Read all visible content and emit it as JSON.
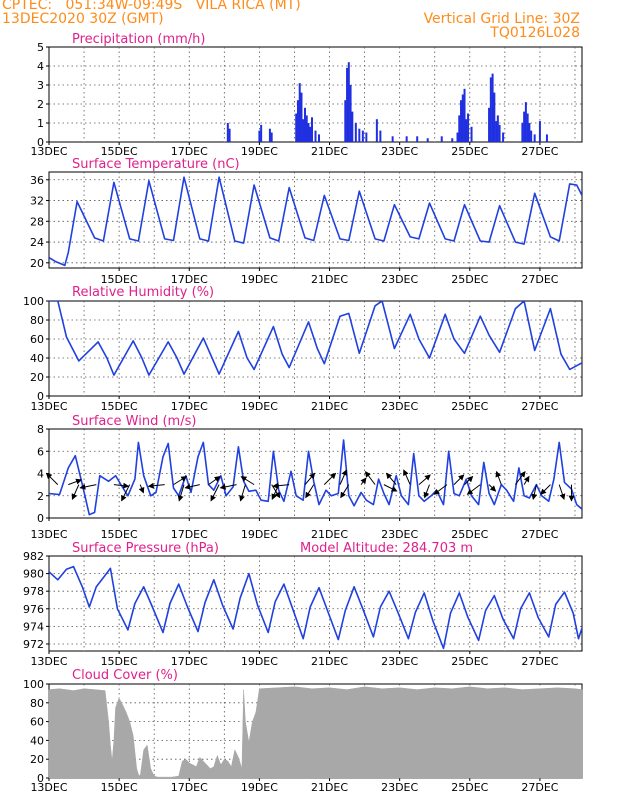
{
  "header": {
    "line1": "CPTEC:   051:34W-09:49S   VILA RICA (MT)",
    "line2": "13DEC2020 30Z (GMT)",
    "grid_note": "Vertical Grid Line: 30Z",
    "model_code": "TQ0126L028"
  },
  "colors": {
    "header": "#ff8c1a",
    "panel_title": "#e0208c",
    "series": "#2040e0",
    "bars": "#2030e0",
    "cloud_fill": "#a8a8a8",
    "wind_arrow": "#000000"
  },
  "chart_data": [
    {
      "type": "bar",
      "title": "Precipitation (mm/h)",
      "ylim": [
        0,
        5
      ],
      "yticks": [
        "0",
        "1",
        "2",
        "3",
        "4",
        "5"
      ],
      "x_tick_labels": [
        "13DEC",
        "15DEC",
        "17DEC",
        "19DEC",
        "21DEC",
        "23DEC",
        "25DEC",
        "27DEC"
      ],
      "x_domain_days": [
        13,
        28.2
      ],
      "series": [
        {
          "x": [
            18.1,
            18.15,
            19.0,
            19.05,
            19.3,
            19.35,
            20.05,
            20.1,
            20.15,
            20.2,
            20.25,
            20.3,
            20.35,
            20.4,
            20.45,
            20.5,
            20.6,
            20.7,
            21.45,
            21.5,
            21.55,
            21.6,
            21.65,
            21.75,
            21.85,
            21.95,
            22.05,
            22.35,
            22.45,
            22.8,
            23.2,
            23.5,
            23.8,
            24.2,
            24.5,
            24.65,
            24.7,
            24.75,
            24.8,
            24.85,
            24.9,
            24.95,
            25.05,
            25.55,
            25.6,
            25.65,
            25.7,
            25.75,
            25.8,
            25.85,
            25.95,
            26.5,
            26.55,
            26.6,
            26.65,
            26.7,
            26.75,
            26.85,
            27.0,
            27.2
          ],
          "values": [
            1.0,
            0.7,
            0.6,
            0.9,
            0.7,
            0.5,
            1.5,
            2.2,
            3.1,
            2.6,
            1.2,
            1.8,
            1.4,
            1.0,
            0.8,
            1.3,
            0.6,
            0.4,
            2.2,
            3.9,
            4.2,
            3.0,
            1.6,
            1.0,
            0.7,
            0.6,
            0.5,
            1.2,
            0.6,
            0.3,
            0.3,
            0.3,
            0.2,
            0.3,
            0.2,
            0.5,
            1.4,
            2.2,
            2.5,
            2.8,
            1.2,
            1.5,
            0.8,
            1.8,
            3.4,
            3.6,
            2.6,
            1.1,
            1.4,
            0.9,
            0.5,
            1.0,
            1.6,
            2.1,
            1.5,
            1.0,
            0.6,
            0.4,
            1.1,
            0.4
          ]
        }
      ]
    },
    {
      "type": "line",
      "title": "Surface Temperature (nC)",
      "ylim": [
        19,
        37.5
      ],
      "yticks": [
        "20",
        "24",
        "28",
        "32",
        "36"
      ],
      "x_tick_labels": [
        "15DEC",
        "17DEC",
        "19DEC",
        "21DEC",
        "23DEC",
        "25DEC",
        "27DEC"
      ],
      "x_domain_days": [
        13,
        28.2
      ],
      "series": [
        {
          "x": [
            13.0,
            13.2,
            13.45,
            13.55,
            13.8,
            14.3,
            14.55,
            14.85,
            15.3,
            15.55,
            15.85,
            16.3,
            16.55,
            16.85,
            17.3,
            17.55,
            17.85,
            18.3,
            18.55,
            18.85,
            19.3,
            19.55,
            19.85,
            20.3,
            20.55,
            20.85,
            21.3,
            21.55,
            21.85,
            22.3,
            22.55,
            22.85,
            23.3,
            23.55,
            23.85,
            24.3,
            24.55,
            24.85,
            25.3,
            25.55,
            25.85,
            26.3,
            26.55,
            26.85,
            27.3,
            27.55,
            27.85,
            28.05,
            28.2
          ],
          "values": [
            21.0,
            20.2,
            19.5,
            22.0,
            31.8,
            24.8,
            24.2,
            35.5,
            24.6,
            24.2,
            35.8,
            24.6,
            24.3,
            36.5,
            24.6,
            24.2,
            36.5,
            24.2,
            23.8,
            35.0,
            24.8,
            24.2,
            34.5,
            24.8,
            24.3,
            33.0,
            24.6,
            24.3,
            33.8,
            24.6,
            24.2,
            31.2,
            25.0,
            24.6,
            31.5,
            24.6,
            24.2,
            31.2,
            24.2,
            24.0,
            31.0,
            24.0,
            23.6,
            33.4,
            25.0,
            24.2,
            35.2,
            35.0,
            33.0
          ]
        }
      ]
    },
    {
      "type": "line",
      "title": "Relative Humidity (%)",
      "ylim": [
        0,
        100
      ],
      "yticks": [
        "0",
        "20",
        "40",
        "60",
        "80",
        "100"
      ],
      "x_tick_labels": [
        "13DEC",
        "15DEC",
        "17DEC",
        "19DEC",
        "21DEC",
        "23DEC",
        "25DEC",
        "27DEC"
      ],
      "x_domain_days": [
        13,
        28.2
      ],
      "series": [
        {
          "x": [
            13.0,
            13.25,
            13.5,
            13.85,
            14.4,
            14.65,
            14.85,
            15.4,
            15.65,
            15.85,
            16.4,
            16.65,
            16.85,
            17.4,
            17.65,
            17.85,
            18.4,
            18.65,
            18.85,
            19.4,
            19.65,
            19.85,
            20.4,
            20.65,
            20.85,
            21.3,
            21.55,
            21.85,
            22.3,
            22.5,
            22.85,
            23.3,
            23.55,
            23.85,
            24.3,
            24.55,
            24.85,
            25.3,
            25.55,
            25.85,
            26.3,
            26.55,
            26.85,
            27.3,
            27.6,
            27.85,
            28.2
          ],
          "values": [
            100,
            100,
            62,
            37,
            57,
            40,
            22,
            58,
            40,
            22,
            57,
            40,
            23,
            61,
            40,
            23,
            68,
            40,
            28,
            73,
            44,
            30,
            78,
            50,
            34,
            84,
            87,
            45,
            95,
            100,
            50,
            86,
            60,
            40,
            86,
            60,
            45,
            84,
            64,
            46,
            92,
            100,
            48,
            92,
            44,
            28,
            35
          ]
        }
      ]
    },
    {
      "type": "line",
      "title": "Surface Wind (m/s)",
      "ylim": [
        0,
        8
      ],
      "yticks": [
        "0",
        "2",
        "4",
        "6",
        "8"
      ],
      "x_tick_labels": [
        "13DEC",
        "15DEC",
        "17DEC",
        "19DEC",
        "21DEC",
        "23DEC",
        "25DEC",
        "27DEC"
      ],
      "x_domain_days": [
        13,
        28.2
      ],
      "series": [
        {
          "x": [
            13.0,
            13.3,
            13.55,
            13.75,
            13.95,
            14.15,
            14.3,
            14.45,
            14.7,
            14.9,
            15.05,
            15.25,
            15.45,
            15.55,
            15.7,
            15.9,
            16.05,
            16.25,
            16.4,
            16.55,
            16.7,
            16.9,
            17.05,
            17.25,
            17.4,
            17.55,
            17.7,
            17.9,
            18.05,
            18.25,
            18.4,
            18.55,
            18.7,
            18.9,
            19.05,
            19.25,
            19.4,
            19.55,
            19.7,
            19.9,
            20.05,
            20.25,
            20.4,
            20.55,
            20.7,
            20.9,
            21.05,
            21.25,
            21.4,
            21.55,
            21.7,
            21.9,
            22.05,
            22.25,
            22.4,
            22.55,
            22.7,
            22.9,
            23.05,
            23.25,
            23.4,
            23.55,
            23.7,
            23.9,
            24.05,
            24.25,
            24.4,
            24.55,
            24.7,
            24.9,
            25.05,
            25.25,
            25.4,
            25.55,
            25.7,
            25.9,
            26.05,
            26.25,
            26.4,
            26.55,
            26.7,
            26.9,
            27.05,
            27.25,
            27.4,
            27.55,
            27.7,
            27.9,
            28.05,
            28.2
          ],
          "values": [
            2.2,
            2.1,
            4.5,
            5.6,
            3.0,
            0.3,
            0.5,
            3.8,
            3.3,
            3.8,
            3.0,
            2.0,
            3.5,
            6.8,
            3.8,
            2.0,
            2.3,
            5.5,
            6.7,
            2.7,
            2.0,
            3.8,
            2.3,
            5.5,
            6.8,
            3.0,
            2.5,
            3.8,
            2.0,
            2.8,
            6.4,
            3.3,
            2.4,
            2.5,
            1.6,
            1.5,
            6.0,
            2.5,
            1.5,
            4.2,
            2.0,
            1.6,
            6.0,
            3.3,
            1.2,
            2.5,
            2.0,
            2.2,
            7.0,
            2.0,
            1.1,
            2.3,
            1.6,
            1.2,
            3.5,
            2.2,
            1.2,
            3.8,
            2.0,
            1.2,
            5.8,
            2.0,
            1.5,
            2.0,
            2.5,
            1.2,
            6.0,
            2.2,
            2.0,
            3.5,
            2.0,
            1.2,
            5.0,
            2.2,
            1.2,
            3.0,
            2.5,
            1.5,
            4.5,
            2.0,
            1.8,
            3.0,
            2.0,
            1.5,
            3.5,
            6.8,
            3.2,
            2.6,
            1.2,
            0.8
          ]
        }
      ],
      "wind_vectors": {
        "x": [
          13.25,
          13.55,
          13.85,
          14.35,
          14.85,
          15.3,
          15.6,
          16.3,
          16.55,
          16.85,
          17.3,
          17.55,
          17.85,
          18.35,
          18.6,
          18.85,
          19.35,
          19.55,
          19.85,
          20.3,
          20.55,
          20.85,
          21.3,
          21.55,
          21.9,
          22.3,
          22.55,
          22.9,
          23.3,
          23.55,
          23.85,
          24.35,
          24.55,
          24.85,
          25.3,
          25.55,
          25.9,
          26.3,
          26.55,
          26.9,
          27.3,
          27.55,
          27.9
        ],
        "u": [
          -0.7,
          0.8,
          -0.4,
          -1.0,
          0.9,
          -0.5,
          0.2,
          -1.0,
          0.8,
          -0.3,
          -0.9,
          0.7,
          -0.5,
          -1.0,
          -0.3,
          -0.8,
          0.5,
          -0.4,
          -1.0,
          0.6,
          -0.5,
          0.7,
          0.4,
          -0.5,
          0.3,
          -0.6,
          0.8,
          -0.6,
          -0.4,
          0.7,
          -0.3,
          -0.8,
          0.6,
          0.5,
          -0.8,
          0.4,
          -0.3,
          0.6,
          0.3,
          -0.2,
          -0.6,
          0.3,
          0.0
        ],
        "v": [
          0.7,
          0.3,
          -0.9,
          -0.2,
          -0.1,
          -1.0,
          -0.5,
          -0.1,
          0.5,
          -1.0,
          -0.2,
          0.5,
          -1.0,
          -0.2,
          -1.0,
          0.5,
          -0.8,
          -0.9,
          -0.1,
          0.7,
          -0.8,
          0.7,
          0.9,
          -0.8,
          0.4,
          0.8,
          -0.4,
          0.7,
          0.9,
          0.6,
          -0.8,
          -0.6,
          0.6,
          0.5,
          -0.6,
          -0.4,
          0.8,
          0.8,
          0.5,
          -0.9,
          -0.6,
          -0.9,
          -1.0
        ]
      }
    },
    {
      "type": "line",
      "title": "Surface Pressure (hPa)",
      "annotation": "Model Altitude: 284.703 m",
      "ylim": [
        971.2,
        982
      ],
      "yticks": [
        "972",
        "974",
        "976",
        "978",
        "980",
        "982"
      ],
      "x_tick_labels": [
        "13DEC",
        "15DEC",
        "17DEC",
        "19DEC",
        "21DEC",
        "23DEC",
        "25DEC",
        "27DEC"
      ],
      "x_domain_days": [
        13,
        28.2
      ],
      "series": [
        {
          "x": [
            13.0,
            13.25,
            13.5,
            13.7,
            13.95,
            14.15,
            14.35,
            14.6,
            14.75,
            14.95,
            15.25,
            15.45,
            15.7,
            15.95,
            16.25,
            16.45,
            16.7,
            16.95,
            17.25,
            17.45,
            17.7,
            17.95,
            18.25,
            18.45,
            18.7,
            18.95,
            19.25,
            19.45,
            19.7,
            19.95,
            20.25,
            20.45,
            20.7,
            20.95,
            21.25,
            21.45,
            21.7,
            21.95,
            22.25,
            22.45,
            22.7,
            22.95,
            23.25,
            23.45,
            23.7,
            23.95,
            24.25,
            24.45,
            24.7,
            24.95,
            25.25,
            25.45,
            25.7,
            25.95,
            26.25,
            26.45,
            26.7,
            26.95,
            27.25,
            27.45,
            27.7,
            27.95,
            28.1,
            28.2
          ],
          "values": [
            980.2,
            979.3,
            980.5,
            980.8,
            978.5,
            976.2,
            978.5,
            979.8,
            980.6,
            976.0,
            973.6,
            976.6,
            978.5,
            976.2,
            973.3,
            976.6,
            978.8,
            976.2,
            973.4,
            976.7,
            979.3,
            976.4,
            973.7,
            977.2,
            980.0,
            976.4,
            973.3,
            976.8,
            978.8,
            976.0,
            972.6,
            976.2,
            978.4,
            975.7,
            972.5,
            975.8,
            978.5,
            976.0,
            972.8,
            976.2,
            978.0,
            975.6,
            972.6,
            975.6,
            977.8,
            974.6,
            971.5,
            975.5,
            977.8,
            975.0,
            972.4,
            975.8,
            977.5,
            974.8,
            972.6,
            976.0,
            977.8,
            975.0,
            972.8,
            976.5,
            977.9,
            975.5,
            972.6,
            973.8
          ]
        }
      ]
    },
    {
      "type": "area",
      "title": "Cloud Cover (%)",
      "ylim": [
        0,
        100
      ],
      "yticks": [
        "0",
        "20",
        "40",
        "60",
        "80",
        "100"
      ],
      "x_tick_labels": [
        "13DEC",
        "15DEC",
        "17DEC",
        "19DEC",
        "21DEC",
        "23DEC",
        "25DEC",
        "27DEC"
      ],
      "x_domain_days": [
        13,
        28.2
      ],
      "series": [
        {
          "x": [
            13.0,
            13.3,
            13.7,
            14.0,
            14.3,
            14.6,
            14.7,
            14.75,
            14.8,
            14.85,
            14.9,
            15.0,
            15.1,
            15.2,
            15.3,
            15.4,
            15.5,
            15.55,
            15.6,
            15.7,
            15.8,
            15.9,
            16.0,
            16.1,
            16.5,
            16.7,
            16.75,
            16.8,
            16.9,
            17.0,
            17.1,
            17.2,
            17.3,
            17.4,
            17.5,
            17.6,
            17.7,
            17.8,
            17.9,
            18.0,
            18.1,
            18.2,
            18.3,
            18.4,
            18.5,
            18.55,
            18.6,
            18.7,
            18.8,
            18.9,
            19.0,
            19.5,
            20.0,
            20.5,
            21.0,
            21.5,
            22.0,
            22.5,
            23.0,
            23.5,
            24.0,
            24.5,
            25.0,
            25.5,
            26.0,
            26.5,
            27.0,
            27.5,
            28.0,
            28.2
          ],
          "values": [
            94,
            95,
            93,
            95,
            94,
            93,
            60,
            35,
            18,
            40,
            75,
            85,
            78,
            70,
            60,
            45,
            10,
            4,
            2,
            30,
            35,
            10,
            2,
            1,
            1,
            2,
            10,
            18,
            20,
            16,
            14,
            12,
            22,
            18,
            14,
            10,
            12,
            24,
            14,
            20,
            18,
            12,
            30,
            22,
            10,
            94,
            60,
            38,
            60,
            70,
            95,
            96,
            97,
            95,
            96,
            94,
            97,
            95,
            96,
            94,
            96,
            95,
            97,
            95,
            96,
            94,
            95,
            96,
            95,
            94
          ]
        }
      ]
    }
  ]
}
